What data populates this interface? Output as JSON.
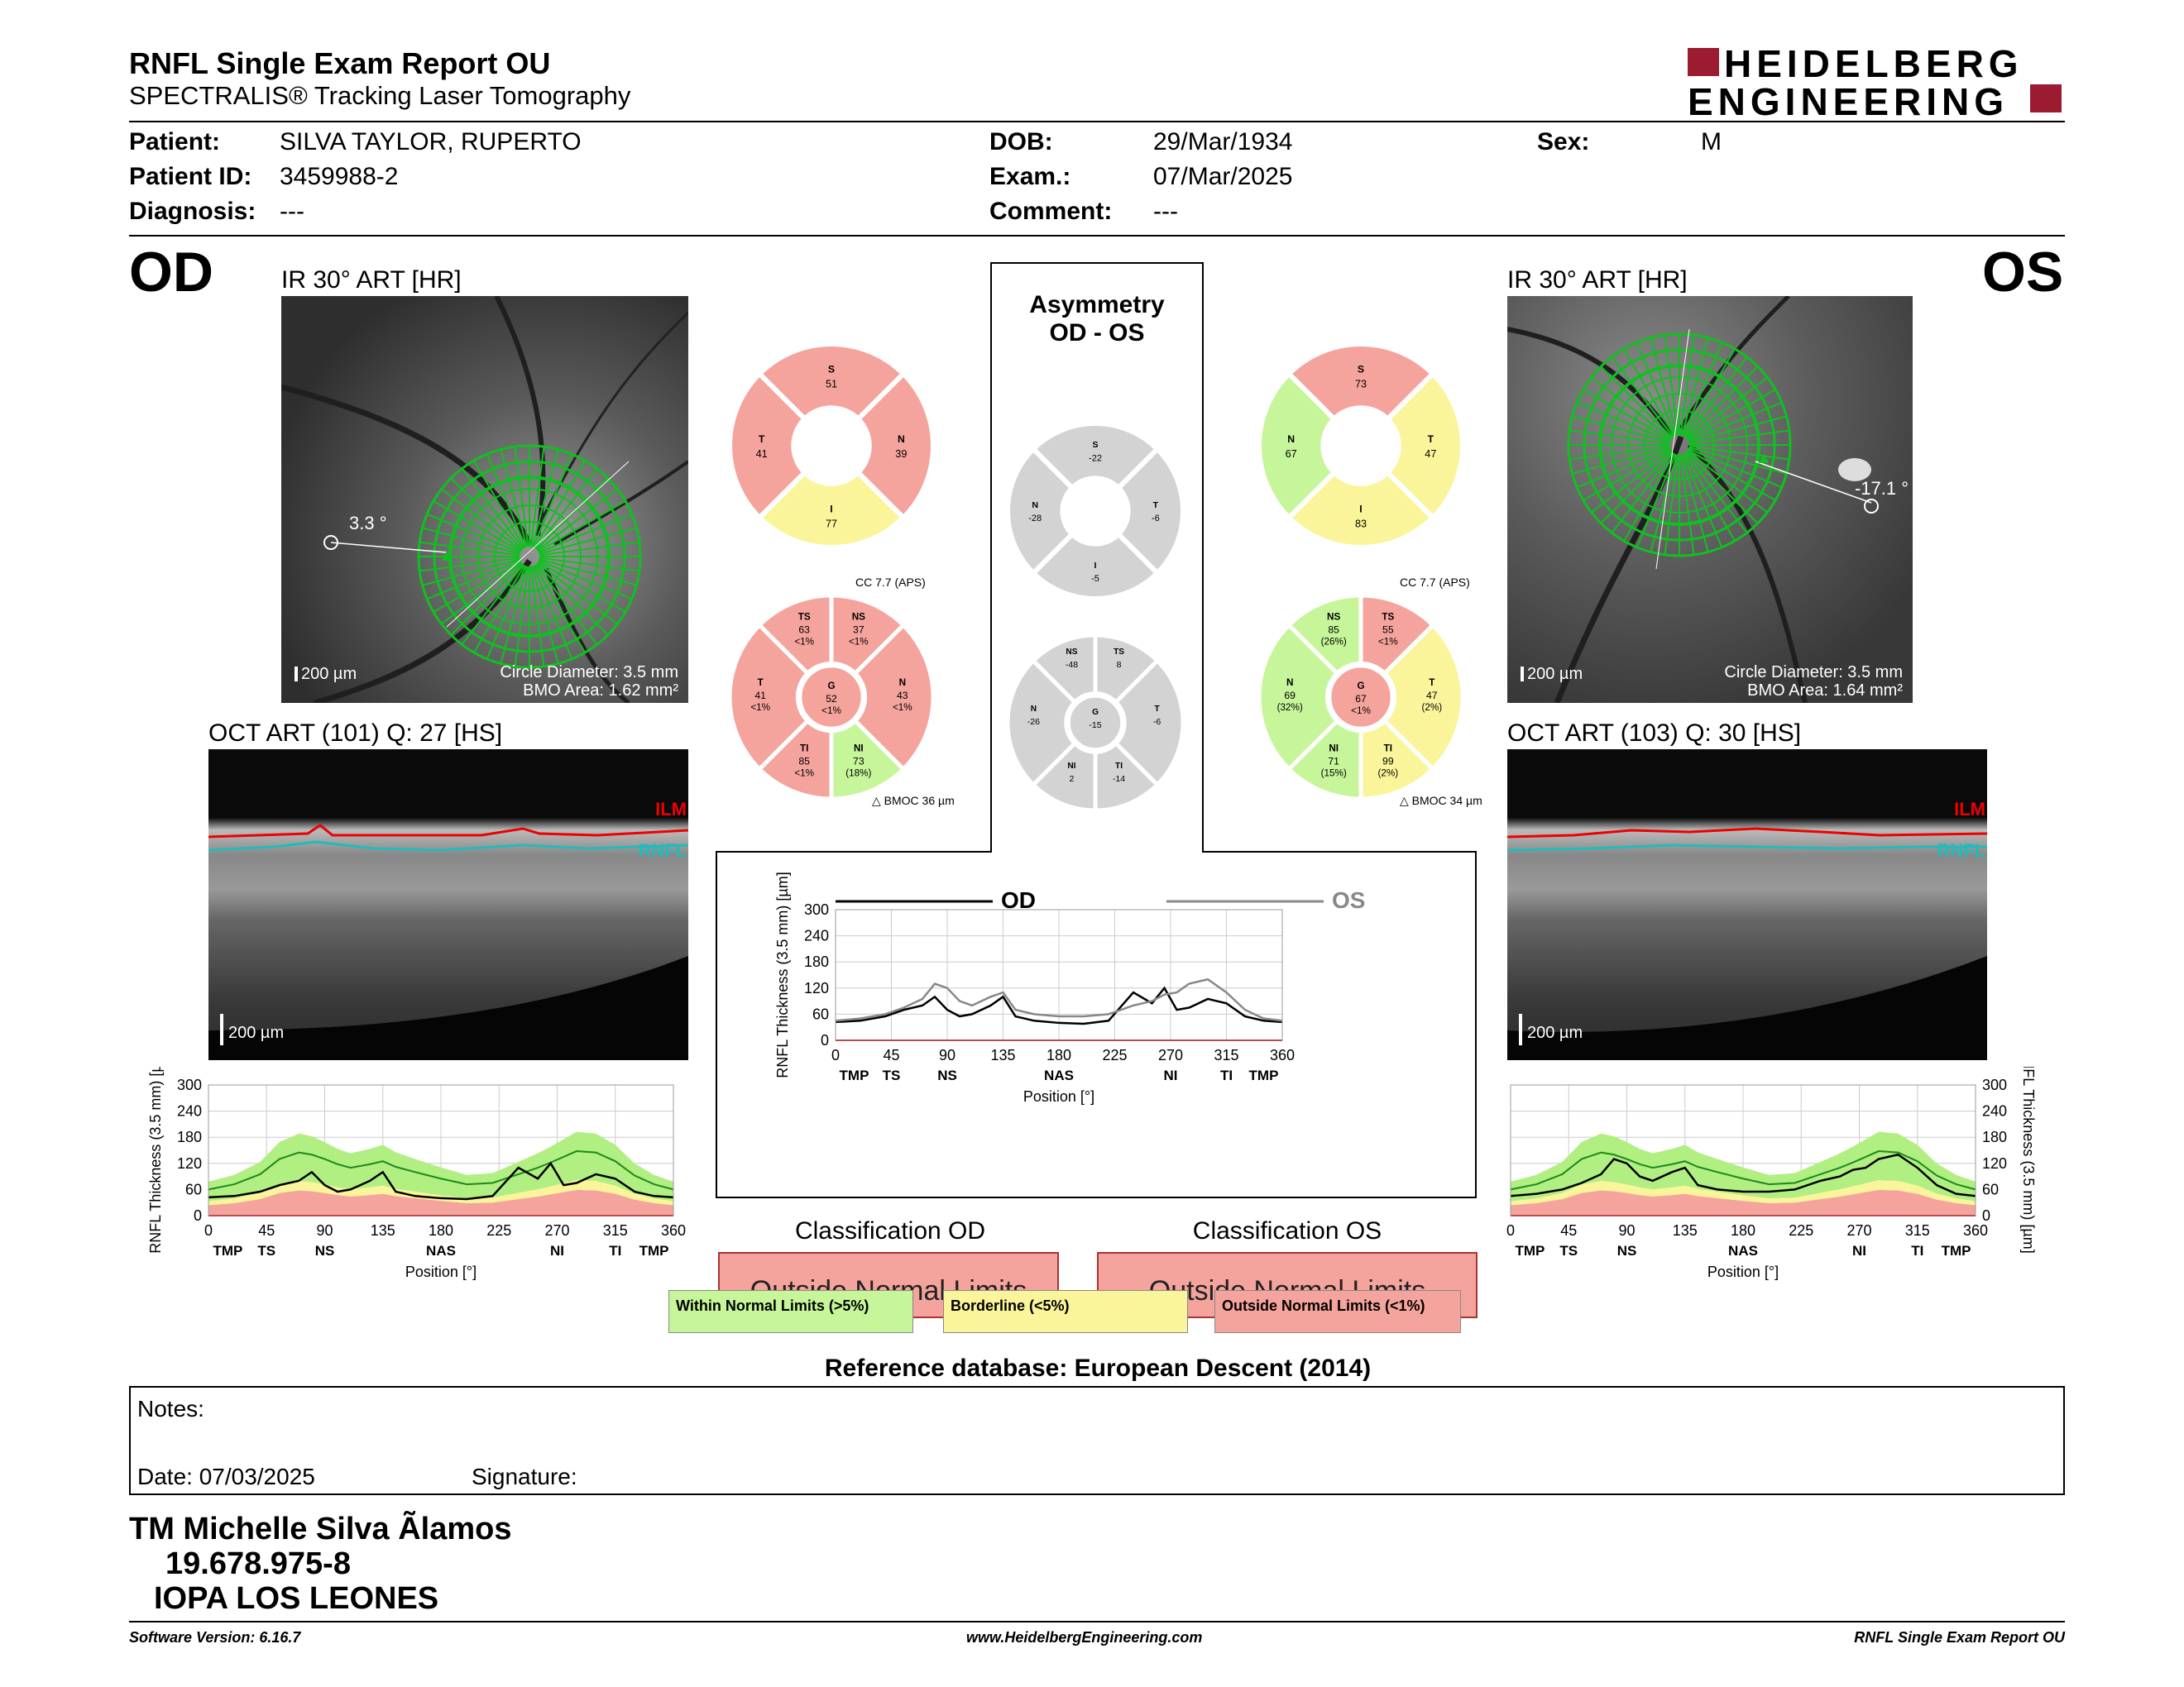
{
  "header": {
    "title": "RNFL Single Exam Report OU",
    "subtitle": "SPECTRALIS® Tracking Laser Tomography",
    "logo_line1": "HEIDELBERG",
    "logo_line2": "ENGINEERING"
  },
  "patient": {
    "patient_label": "Patient:",
    "patient_value": "SILVA TAYLOR, RUPERTO",
    "id_label": "Patient ID:",
    "id_value": "3459988-2",
    "diagnosis_label": "Diagnosis:",
    "diagnosis_value": "---",
    "dob_label": "DOB:",
    "dob_value": "29/Mar/1934",
    "exam_label": "Exam.:",
    "exam_value": "07/Mar/2025",
    "comment_label": "Comment:",
    "comment_value": "---",
    "sex_label": "Sex:",
    "sex_value": "M"
  },
  "od": {
    "eye": "OD",
    "ir_title": "IR 30° ART [HR]",
    "angle": "3.3 °",
    "scale": "200 µm",
    "circle_diameter": "Circle Diameter: 3.5 mm",
    "bmo_area": "BMO Area: 1.62 mm²",
    "oct_title": "OCT ART (101) Q: 27 [HS]",
    "ilm": "ILM",
    "rnfl": "RNFL",
    "oct_scale": "200 µm",
    "classification_title": "Classification OD",
    "classification": "Outside Normal Limits"
  },
  "os": {
    "eye": "OS",
    "ir_title": "IR 30° ART [HR]",
    "angle": "-17.1 °",
    "scale": "200 µm",
    "circle_diameter": "Circle Diameter: 3.5 mm",
    "bmo_area": "BMO Area: 1.64 mm²",
    "oct_title": "OCT ART (103) Q: 30 [HS]",
    "ilm": "ILM",
    "rnfl": "RNFL",
    "oct_scale": "200 µm",
    "classification_title": "Classification OS",
    "classification": "Outside Normal Limits"
  },
  "asymmetry": {
    "title_line1": "Asymmetry",
    "title_line2": "OD - OS"
  },
  "sector_charts": {
    "od_quadrant": {
      "S": "51",
      "T": "41",
      "N": "39",
      "I": "77"
    },
    "os_quadrant": {
      "S": "73",
      "N": "67",
      "T": "47",
      "I": "83"
    },
    "asym_quadrant": {
      "S": "-22",
      "N": "-28",
      "T": "-6",
      "I": "-5"
    },
    "od_cc": "CC 7.7 (APS)",
    "os_cc": "CC 7.7 (APS)",
    "od_bmoc": "BMOC 36 µm",
    "os_bmoc": "BMOC 34 µm",
    "od_sector": {
      "TS": [
        "63",
        "<1%"
      ],
      "NS": [
        "37",
        "<1%"
      ],
      "T": [
        "41",
        "<1%"
      ],
      "G": [
        "52",
        "<1%"
      ],
      "N": [
        "43",
        "<1%"
      ],
      "TI": [
        "85",
        "<1%"
      ],
      "NI": [
        "73",
        "(18%)"
      ]
    },
    "os_sector": {
      "NS": [
        "85",
        "(26%)"
      ],
      "TS": [
        "55",
        "<1%"
      ],
      "N": [
        "69",
        "(32%)"
      ],
      "G": [
        "67",
        "<1%"
      ],
      "T": [
        "47",
        "(2%)"
      ],
      "NI": [
        "71",
        "(15%)"
      ],
      "TI": [
        "99",
        "(2%)"
      ]
    },
    "asym_sector": {
      "NS": "-48",
      "TS": "8",
      "N": "-26",
      "G": "-15",
      "T": "-6",
      "NI": "2",
      "TI": "-14"
    },
    "colors": {
      "red": "#f4a49c",
      "yellow": "#faf59a",
      "green": "#c6f59a",
      "gray": "#d3d3d3"
    }
  },
  "legend": {
    "within": "Within Normal Limits (>5%)",
    "borderline": "Borderline (<5%)",
    "outside": "Outside Normal Limits (<1%)"
  },
  "reference_db": "Reference database: European Descent (2014)",
  "notes": {
    "notes_label": "Notes:",
    "date_label": "Date: 07/03/2025",
    "signature_label": "Signature:"
  },
  "footer_text": {
    "line1": "TM Michelle Silva Ãlamos",
    "line2": "19.678.975-8",
    "line3": "IOPA LOS LEONES",
    "software": "Software Version: 6.16.7",
    "website": "www.HeidelbergEngineering.com",
    "report_name": "RNFL Single Exam Report OU"
  },
  "chart_data": [
    {
      "type": "line",
      "id": "od_tsnit",
      "ylabel": "RNFL Thickness (3.5 mm) [µm]",
      "xlabel": "Position [°]",
      "xlim": [
        0,
        360
      ],
      "ylim": [
        0,
        300
      ],
      "xticks": [
        0,
        45,
        90,
        135,
        180,
        225,
        270,
        315,
        360
      ],
      "yticks": [
        0,
        60,
        120,
        180,
        240,
        300
      ],
      "sector_labels": [
        "TMP",
        "TS",
        "NS",
        "NAS",
        "NI",
        "TI",
        "TMP"
      ],
      "x": [
        0,
        20,
        40,
        55,
        70,
        80,
        90,
        100,
        110,
        125,
        135,
        145,
        160,
        180,
        200,
        220,
        240,
        255,
        265,
        275,
        285,
        300,
        315,
        330,
        345,
        360
      ],
      "series": [
        {
          "name": "OD",
          "values": [
            42,
            45,
            55,
            70,
            80,
            100,
            70,
            55,
            60,
            80,
            100,
            55,
            45,
            40,
            38,
            45,
            110,
            85,
            120,
            70,
            75,
            95,
            85,
            55,
            45,
            42
          ]
        }
      ],
      "normal_mean": [
        60,
        72,
        95,
        130,
        145,
        140,
        130,
        118,
        110,
        118,
        125,
        112,
        100,
        85,
        72,
        75,
        95,
        110,
        122,
        135,
        148,
        145,
        125,
        92,
        72,
        60
      ]
    },
    {
      "type": "line",
      "id": "os_tsnit",
      "ylabel": "RNFL Thickness (3.5 mm) [µm]",
      "xlabel": "Position [°]",
      "xlim": [
        0,
        360
      ],
      "ylim": [
        0,
        300
      ],
      "xticks": [
        0,
        45,
        90,
        135,
        180,
        225,
        270,
        315,
        360
      ],
      "yticks": [
        0,
        60,
        120,
        180,
        240,
        300
      ],
      "sector_labels": [
        "TMP",
        "TS",
        "NS",
        "NAS",
        "NI",
        "TI",
        "TMP"
      ],
      "x": [
        0,
        20,
        40,
        55,
        70,
        80,
        90,
        100,
        110,
        125,
        135,
        145,
        160,
        180,
        200,
        220,
        240,
        255,
        265,
        275,
        285,
        300,
        315,
        330,
        345,
        360
      ],
      "series": [
        {
          "name": "OS",
          "values": [
            45,
            50,
            60,
            75,
            95,
            130,
            120,
            90,
            80,
            100,
            110,
            70,
            60,
            55,
            55,
            60,
            80,
            90,
            105,
            110,
            130,
            140,
            110,
            70,
            50,
            45
          ]
        }
      ],
      "normal_mean": [
        60,
        72,
        95,
        130,
        145,
        140,
        130,
        118,
        110,
        118,
        125,
        112,
        100,
        85,
        72,
        75,
        95,
        110,
        122,
        135,
        148,
        145,
        125,
        92,
        72,
        60
      ]
    },
    {
      "type": "line",
      "id": "asym_tsnit",
      "ylabel": "RNFL Thickness (3.5 mm) [µm]",
      "xlabel": "Position [°]",
      "xlim": [
        0,
        360
      ],
      "ylim": [
        0,
        300
      ],
      "xticks": [
        0,
        45,
        90,
        135,
        180,
        225,
        270,
        315,
        360
      ],
      "yticks": [
        0,
        60,
        120,
        180,
        240,
        300
      ],
      "sector_labels": [
        "TMP",
        "TS",
        "NS",
        "NAS",
        "NI",
        "TI",
        "TMP"
      ],
      "x": [
        0,
        20,
        40,
        55,
        70,
        80,
        90,
        100,
        110,
        125,
        135,
        145,
        160,
        180,
        200,
        220,
        240,
        255,
        265,
        275,
        285,
        300,
        315,
        330,
        345,
        360
      ],
      "series": [
        {
          "name": "OD",
          "values": [
            42,
            45,
            55,
            70,
            80,
            100,
            70,
            55,
            60,
            80,
            100,
            55,
            45,
            40,
            38,
            45,
            110,
            85,
            120,
            70,
            75,
            95,
            85,
            55,
            45,
            42
          ]
        },
        {
          "name": "OS",
          "values": [
            45,
            50,
            60,
            75,
            95,
            130,
            120,
            90,
            80,
            100,
            110,
            70,
            60,
            55,
            55,
            60,
            80,
            90,
            105,
            110,
            130,
            140,
            110,
            70,
            50,
            45
          ]
        }
      ]
    }
  ]
}
